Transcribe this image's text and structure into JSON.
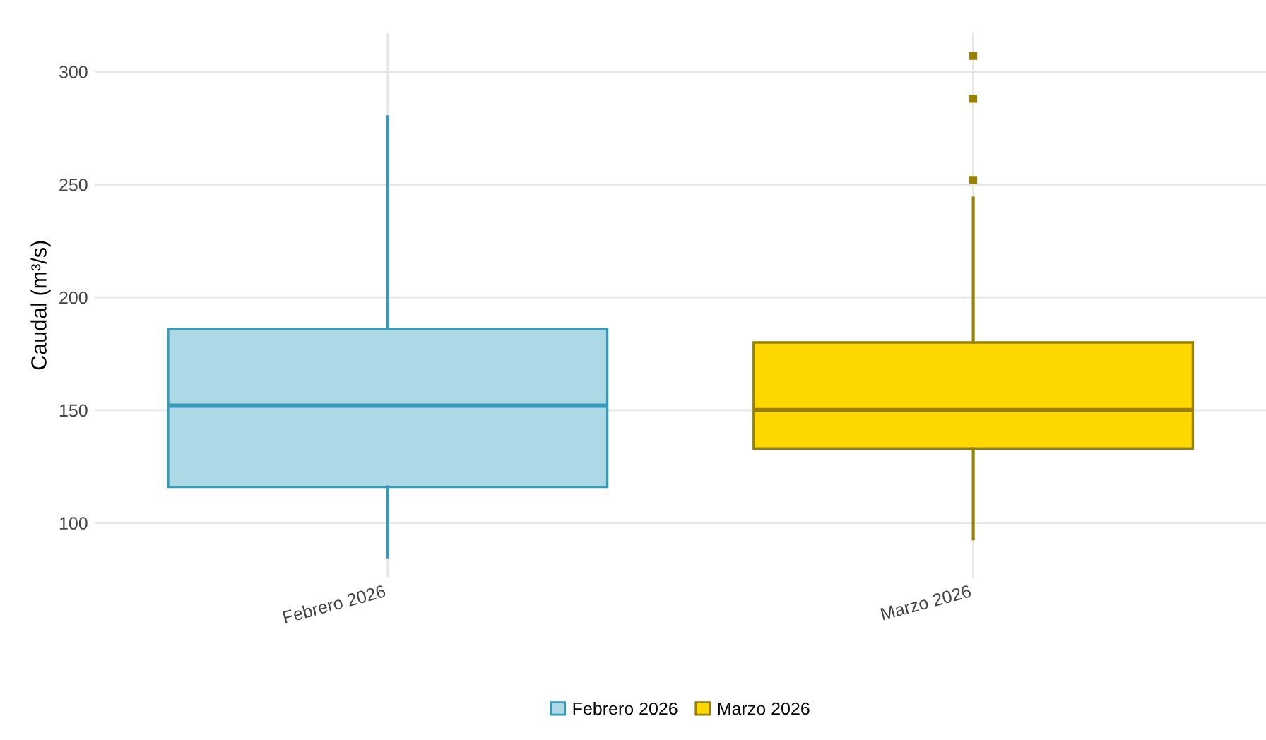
{
  "chart_data": {
    "type": "box",
    "ylabel": "Caudal (m³/s)",
    "categories": [
      "Febrero 2026",
      "Marzo 2026"
    ],
    "series": [
      {
        "name": "Febrero 2026",
        "color": "#add8e6",
        "boxes": [
          {
            "low": 85,
            "q1": 116,
            "median": 152,
            "q3": 186,
            "high": 280
          },
          null
        ]
      },
      {
        "name": "Marzo 2026",
        "color": "#ffd700",
        "boxes": [
          null,
          {
            "low": 93,
            "q1": 133,
            "median": 150,
            "q3": 180,
            "high": 244,
            "outliers": [
              252,
              288,
              307
            ]
          }
        ]
      }
    ],
    "ylim": [
      76,
      317
    ],
    "yticks": [
      100,
      150,
      200,
      250,
      300
    ],
    "grid": true,
    "legend": "bottom"
  }
}
